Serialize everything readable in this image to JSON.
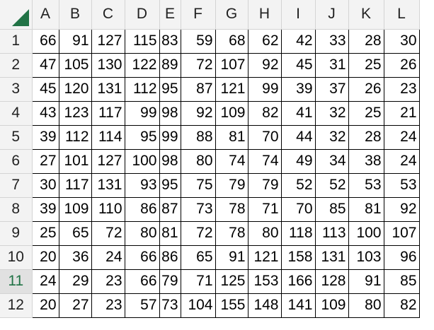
{
  "columns": [
    "A",
    "B",
    "C",
    "D",
    "E",
    "F",
    "G",
    "H",
    "I",
    "J",
    "K",
    "L"
  ],
  "row_numbers": [
    "1",
    "2",
    "3",
    "4",
    "5",
    "6",
    "7",
    "8",
    "9",
    "10",
    "11",
    "12"
  ],
  "selected_row_index": 10,
  "colors": {
    "header_bg": "#f3f3f3",
    "accent": "#217346",
    "grid": "#000000"
  },
  "cells": [
    [
      "66",
      "91",
      "127",
      "115",
      "83",
      "59",
      "68",
      "62",
      "42",
      "33",
      "28",
      "30"
    ],
    [
      "47",
      "105",
      "130",
      "122",
      "89",
      "72",
      "107",
      "92",
      "45",
      "31",
      "25",
      "26"
    ],
    [
      "45",
      "120",
      "131",
      "112",
      "95",
      "87",
      "121",
      "99",
      "39",
      "37",
      "26",
      "23"
    ],
    [
      "43",
      "123",
      "117",
      "99",
      "98",
      "92",
      "109",
      "82",
      "41",
      "32",
      "25",
      "21"
    ],
    [
      "39",
      "112",
      "114",
      "95",
      "99",
      "88",
      "81",
      "70",
      "44",
      "32",
      "28",
      "24"
    ],
    [
      "27",
      "101",
      "127",
      "100",
      "98",
      "80",
      "74",
      "74",
      "49",
      "34",
      "38",
      "24"
    ],
    [
      "30",
      "117",
      "131",
      "93",
      "95",
      "75",
      "79",
      "79",
      "52",
      "52",
      "53",
      "53"
    ],
    [
      "39",
      "109",
      "110",
      "86",
      "87",
      "73",
      "78",
      "71",
      "70",
      "85",
      "81",
      "92"
    ],
    [
      "25",
      "65",
      "72",
      "80",
      "81",
      "72",
      "78",
      "80",
      "118",
      "113",
      "100",
      "107"
    ],
    [
      "20",
      "36",
      "24",
      "66",
      "86",
      "65",
      "91",
      "121",
      "158",
      "131",
      "103",
      "96"
    ],
    [
      "24",
      "29",
      "23",
      "66",
      "79",
      "71",
      "125",
      "153",
      "166",
      "128",
      "91",
      "85"
    ],
    [
      "20",
      "27",
      "23",
      "57",
      "73",
      "104",
      "155",
      "148",
      "141",
      "109",
      "80",
      "82"
    ]
  ]
}
